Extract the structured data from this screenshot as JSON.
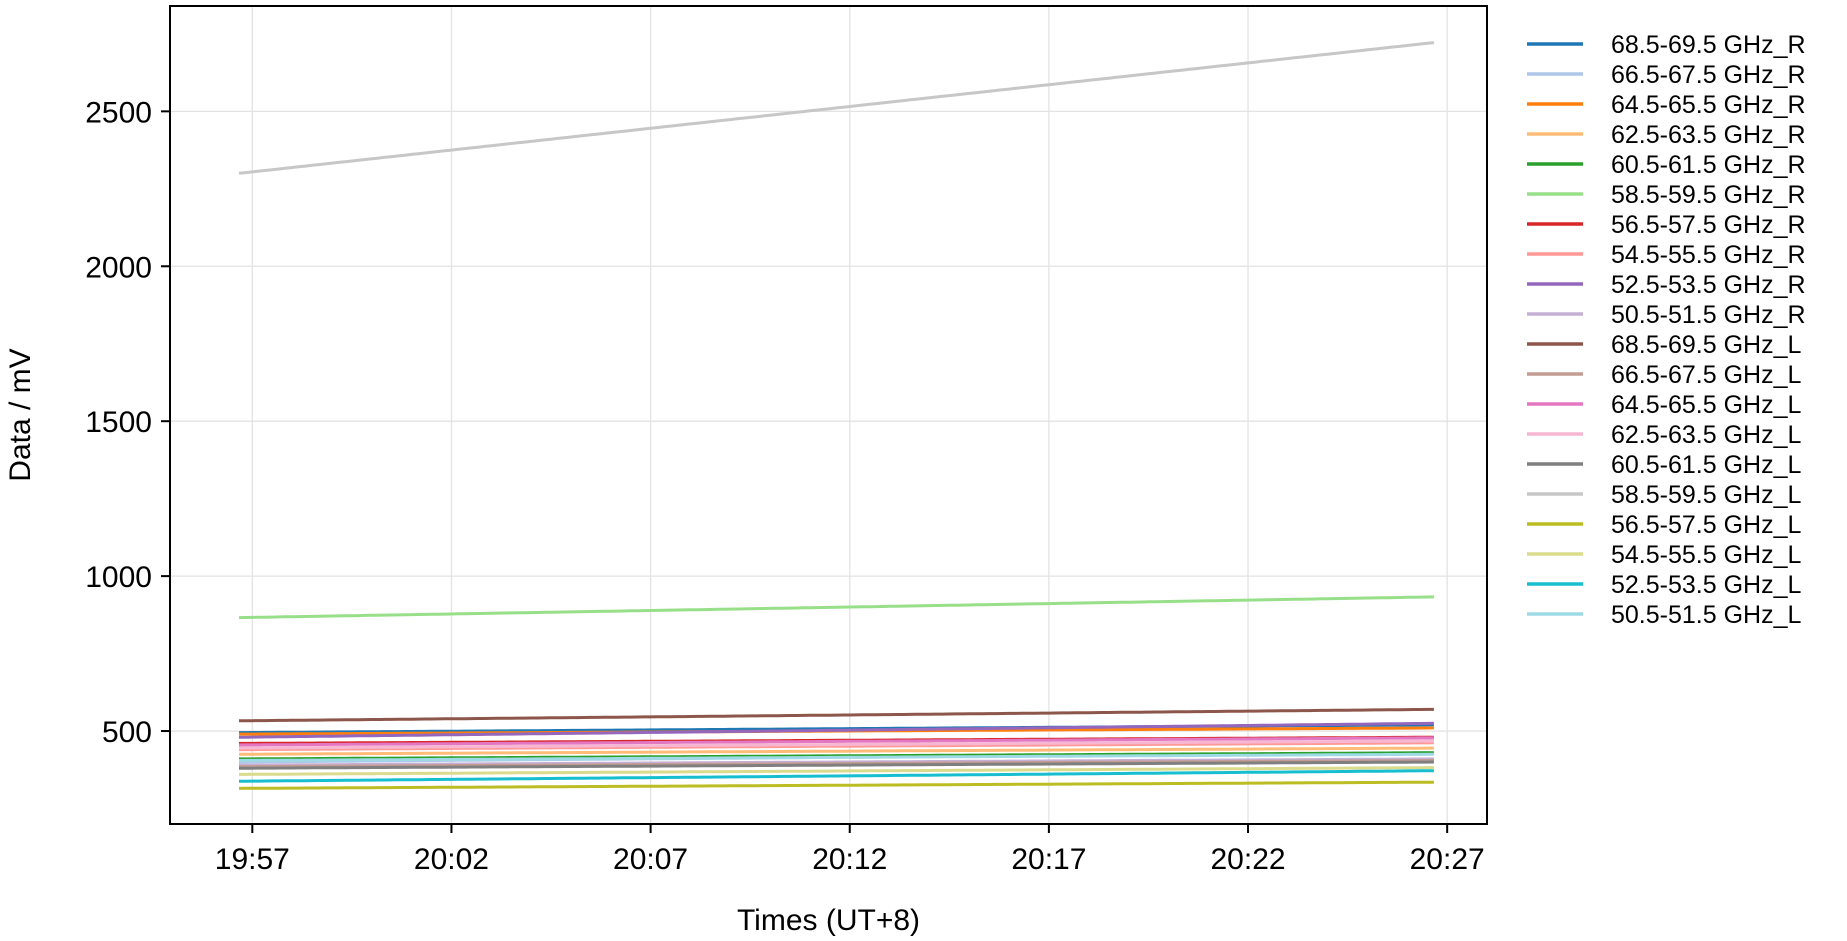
{
  "chart_data": {
    "type": "line",
    "title": "",
    "xlabel": "Times (UT+8)",
    "ylabel": "Data / mV",
    "x_ticks": [
      "19:57",
      "20:02",
      "20:07",
      "20:12",
      "20:17",
      "20:22",
      "20:27"
    ],
    "x_range": [
      "19:54:56",
      "20:28:00"
    ],
    "x_data_range": [
      "19:56:40",
      "20:26:40"
    ],
    "y_ticks": [
      500,
      1000,
      1500,
      2000,
      2500
    ],
    "ylim": [
      200,
      2840
    ],
    "grid": true,
    "legend_position": "right-outside",
    "series": [
      {
        "name": "68.5-69.5 GHz_R",
        "color": "#1f77b4",
        "start": 495,
        "end": 520
      },
      {
        "name": "66.5-67.5 GHz_R",
        "color": "#aec7e8",
        "start": 400,
        "end": 430
      },
      {
        "name": "64.5-65.5 GHz_R",
        "color": "#ff7f0e",
        "start": 490,
        "end": 510
      },
      {
        "name": "62.5-63.5 GHz_R",
        "color": "#ffbb78",
        "start": 425,
        "end": 445
      },
      {
        "name": "60.5-61.5 GHz_R",
        "color": "#2ca02c",
        "start": 410,
        "end": 430
      },
      {
        "name": "58.5-59.5 GHz_R",
        "color": "#98df8a",
        "start": 866,
        "end": 933
      },
      {
        "name": "56.5-57.5 GHz_R",
        "color": "#d62728",
        "start": 460,
        "end": 480
      },
      {
        "name": "54.5-55.5 GHz_R",
        "color": "#ff9896",
        "start": 440,
        "end": 462
      },
      {
        "name": "52.5-53.5 GHz_R",
        "color": "#9467bd",
        "start": 480,
        "end": 525
      },
      {
        "name": "50.5-51.5 GHz_R",
        "color": "#c5b0d5",
        "start": 390,
        "end": 410
      },
      {
        "name": "68.5-69.5 GHz_L",
        "color": "#8c564b",
        "start": 533,
        "end": 570
      },
      {
        "name": "66.5-67.5 GHz_L",
        "color": "#c49c94",
        "start": 385,
        "end": 405
      },
      {
        "name": "64.5-65.5 GHz_L",
        "color": "#e377c2",
        "start": 455,
        "end": 478
      },
      {
        "name": "62.5-63.5 GHz_L",
        "color": "#f7b6d2",
        "start": 445,
        "end": 468
      },
      {
        "name": "60.5-61.5 GHz_L",
        "color": "#7f7f7f",
        "start": 380,
        "end": 400
      },
      {
        "name": "58.5-59.5 GHz_L",
        "color": "#c7c7c7",
        "start": 2300,
        "end": 2722
      },
      {
        "name": "56.5-57.5 GHz_L",
        "color": "#bcbd22",
        "start": 315,
        "end": 335
      },
      {
        "name": "54.5-55.5 GHz_L",
        "color": "#dbdb8d",
        "start": 360,
        "end": 382
      },
      {
        "name": "52.5-53.5 GHz_L",
        "color": "#17becf",
        "start": 338,
        "end": 372
      },
      {
        "name": "50.5-51.5 GHz_L",
        "color": "#9edae5",
        "start": 405,
        "end": 425
      }
    ]
  }
}
